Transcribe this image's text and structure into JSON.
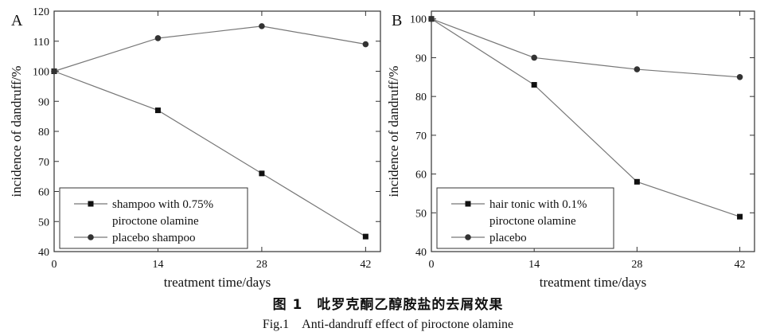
{
  "figure": {
    "caption_zh": "图 1　吡罗克酮乙醇胺盐的去屑效果",
    "caption_en": "Fig.1　Anti-dandruff effect of piroctone olamine"
  },
  "chart_data": [
    {
      "type": "line",
      "panel_label": "A",
      "xlabel": "treatment time/days",
      "ylabel": "incidence of dandruff/%",
      "x": [
        0,
        14,
        28,
        42
      ],
      "xlim": [
        0,
        44
      ],
      "ylim": [
        40,
        120
      ],
      "xticks": [
        "0",
        "14",
        "28",
        "42"
      ],
      "yticks": [
        "40",
        "50",
        "60",
        "70",
        "80",
        "90",
        "100",
        "110",
        "120"
      ],
      "legend_placement": "bottom-left",
      "series": [
        {
          "name_lines": [
            "shampoo with 0.75%",
            "piroctone olamine"
          ],
          "marker": "square",
          "values": [
            100,
            87,
            66,
            45
          ]
        },
        {
          "name_lines": [
            "placebo shampoo"
          ],
          "marker": "circle",
          "values": [
            100,
            111,
            115,
            109
          ]
        }
      ]
    },
    {
      "type": "line",
      "panel_label": "B",
      "xlabel": "treatment time/days",
      "ylabel": "incidence of dandruff/%",
      "x": [
        0,
        14,
        28,
        42
      ],
      "xlim": [
        0,
        44
      ],
      "ylim": [
        40,
        102
      ],
      "xticks": [
        "0",
        "14",
        "28",
        "42"
      ],
      "yticks": [
        "40",
        "50",
        "60",
        "70",
        "80",
        "90",
        "100"
      ],
      "legend_placement": "bottom-left",
      "series": [
        {
          "name_lines": [
            "hair tonic with 0.1%",
            "piroctone olamine"
          ],
          "marker": "square",
          "values": [
            100,
            83,
            58,
            49
          ]
        },
        {
          "name_lines": [
            "placebo"
          ],
          "marker": "circle",
          "values": [
            100,
            90,
            87,
            85
          ]
        }
      ]
    }
  ]
}
